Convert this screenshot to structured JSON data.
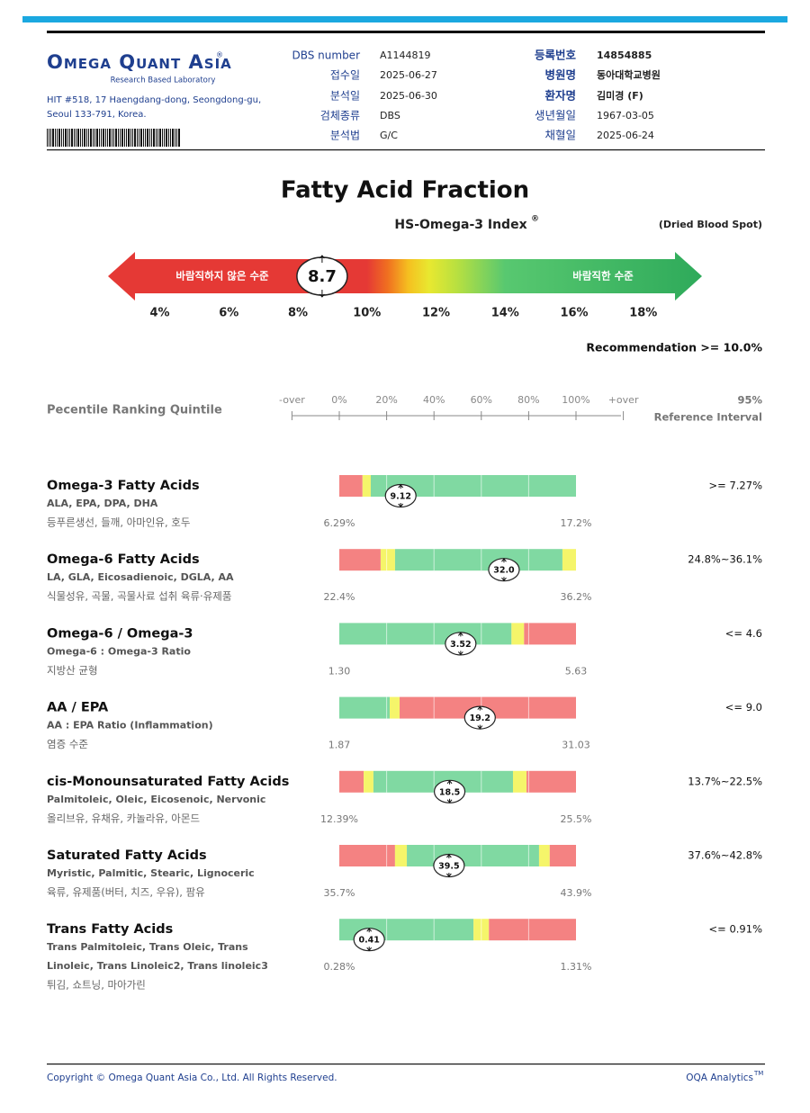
{
  "header": {
    "logo": "Omega Quant Asia",
    "logo_mark": "®",
    "tagline": "Research Based Laboratory",
    "address": [
      "HIT #518, 17 Haengdang-dong, Seongdong-gu,",
      "Seoul 133-791, Korea."
    ],
    "fields_left": [
      {
        "label": "DBS number",
        "value": "A1144819"
      },
      {
        "label": "접수일",
        "value": "2025-06-27"
      },
      {
        "label": "분석일",
        "value": "2025-06-30"
      },
      {
        "label": "검체종류",
        "value": "DBS"
      },
      {
        "label": "분석법",
        "value": "G/C"
      }
    ],
    "fields_right": [
      {
        "label": "등록번호",
        "value": "14854885"
      },
      {
        "label": "병원명",
        "value": "동아대학교병원"
      },
      {
        "label": "환자명",
        "value": "김미경 (F)"
      },
      {
        "label": "생년월일",
        "value": "1967-03-05"
      },
      {
        "label": "채혈일",
        "value": "2025-06-24"
      }
    ]
  },
  "title": "Fatty Acid Fraction",
  "index": {
    "title": "HS-Omega-3 Index",
    "title_mark": "®",
    "sample": "(Dried Blood Spot)",
    "low_label": "바람직하지 않은 수준",
    "high_label": "바람직한 수준",
    "value": 8.7,
    "xlim": [
      2.5,
      19.7
    ],
    "xticks": [
      {
        "value": 4,
        "label": "4%"
      },
      {
        "value": 6,
        "label": "6%"
      },
      {
        "value": 8,
        "label": "8%"
      },
      {
        "value": 10,
        "label": "10%"
      },
      {
        "value": 12,
        "label": "12%"
      },
      {
        "value": 14,
        "label": "14%"
      },
      {
        "value": 16,
        "label": "16%"
      },
      {
        "value": 18,
        "label": "18%"
      }
    ],
    "gradient": [
      {
        "value": 2.5,
        "color": "#e53935"
      },
      {
        "value": 10.0,
        "color": "#e53935"
      },
      {
        "value": 10.6,
        "color": "#f07020"
      },
      {
        "value": 11.2,
        "color": "#f5c020"
      },
      {
        "value": 11.8,
        "color": "#e8e830"
      },
      {
        "value": 12.6,
        "color": "#b8e040"
      },
      {
        "value": 14.0,
        "color": "#58c870"
      },
      {
        "value": 19.7,
        "color": "#2eaa5a"
      }
    ],
    "recommendation": "Recommendation  >= 10.0%"
  },
  "percentile": {
    "title": "Pecentile Ranking Quintile",
    "ticks": [
      {
        "value": -20,
        "label": "-over"
      },
      {
        "value": 0,
        "label": "0%"
      },
      {
        "value": 20,
        "label": "20%"
      },
      {
        "value": 40,
        "label": "40%"
      },
      {
        "value": 60,
        "label": "60%"
      },
      {
        "value": 80,
        "label": "80%"
      },
      {
        "value": 100,
        "label": "100%"
      },
      {
        "value": 120,
        "label": "+over"
      }
    ],
    "ref_title": [
      "95%",
      "Reference Interval"
    ]
  },
  "rows": [
    {
      "name": "Omega-3 Fatty Acids",
      "sub": [
        "ALA, EPA, DPA, DHA"
      ],
      "note": "등푸른생선, 들깨, 아마인유, 호두",
      "min": {
        "value": 6.29,
        "label": "6.29%"
      },
      "max": {
        "value": 17.2,
        "label": "17.2%"
      },
      "value": 9.12,
      "reference": ">= 7.27%",
      "zones": [
        {
          "to": 7.36,
          "color": "#f48282"
        },
        {
          "to": 7.74,
          "color": "#f5f56a"
        },
        {
          "to": 17.2,
          "color": "#80d9a2"
        }
      ]
    },
    {
      "name": "Omega-6 Fatty Acids",
      "sub": [
        "LA, GLA, Eicosadienoic, DGLA, AA"
      ],
      "note": "식물성유, 곡물, 곡물사료 섭취 육류·유제품",
      "min": {
        "value": 22.4,
        "label": "22.4%"
      },
      "max": {
        "value": 36.2,
        "label": "36.2%"
      },
      "value": 32,
      "value_label": "32.0",
      "reference": "24.8%~36.1%",
      "zones": [
        {
          "to": 24.81,
          "color": "#f48282"
        },
        {
          "to": 25.65,
          "color": "#f5f56a"
        },
        {
          "to": 35.41,
          "color": "#80d9a2"
        },
        {
          "to": 36.2,
          "color": "#f5f56a"
        }
      ]
    },
    {
      "name": "Omega-6 / Omega-3",
      "sub": [
        "Omega-6 : Omega-3 Ratio"
      ],
      "note": "지방산 균형",
      "min": {
        "value": 1.3,
        "label": "1.30"
      },
      "max": {
        "value": 5.63,
        "label": "5.63"
      },
      "value": 3.52,
      "reference": "<= 4.6",
      "zones": [
        {
          "to": 4.45,
          "color": "#80d9a2"
        },
        {
          "to": 4.68,
          "color": "#f5f56a"
        },
        {
          "to": 5.63,
          "color": "#f48282"
        }
      ]
    },
    {
      "name": "AA / EPA",
      "sub": [
        "AA : EPA Ratio (Inflammation)"
      ],
      "note": "염증 수준",
      "min": {
        "value": 1.87,
        "label": "1.87"
      },
      "max": {
        "value": 31.03,
        "label": "31.03"
      },
      "value": 19.2,
      "reference": "<= 9.0",
      "zones": [
        {
          "to": 8.08,
          "color": "#80d9a2"
        },
        {
          "to": 9.3,
          "color": "#f5f56a"
        },
        {
          "to": 31.03,
          "color": "#f48282"
        }
      ]
    },
    {
      "name": "cis-Monounsaturated Fatty Acids",
      "sub": [
        "Palmitoleic, Oleic, Eicosenoic, Nervonic"
      ],
      "note": "올리브유, 유채유, 카놀라유, 아몬드",
      "min": {
        "value": 12.39,
        "label": "12.39%"
      },
      "max": {
        "value": 25.5,
        "label": "25.5%"
      },
      "value": 18.5,
      "reference": "13.7%~22.5%",
      "zones": [
        {
          "to": 13.74,
          "color": "#f48282"
        },
        {
          "to": 14.28,
          "color": "#f5f56a"
        },
        {
          "to": 22.01,
          "color": "#80d9a2"
        },
        {
          "to": 22.76,
          "color": "#f5f56a"
        },
        {
          "to": 25.5,
          "color": "#f48282"
        }
      ]
    },
    {
      "name": "Saturated Fatty Acids",
      "sub": [
        "Myristic, Palmitic, Stearic, Lignoceric"
      ],
      "note": "육류, 유제품(버터, 치즈, 우유), 팜유",
      "min": {
        "value": 35.7,
        "label": "35.7%"
      },
      "max": {
        "value": 43.9,
        "label": "43.9%"
      },
      "value": 39.5,
      "reference": "37.6%~42.8%",
      "zones": [
        {
          "to": 37.63,
          "color": "#f48282"
        },
        {
          "to": 38.04,
          "color": "#f5f56a"
        },
        {
          "to": 42.62,
          "color": "#80d9a2"
        },
        {
          "to": 42.99,
          "color": "#f5f56a"
        },
        {
          "to": 43.9,
          "color": "#f48282"
        }
      ]
    },
    {
      "name": "Trans Fatty Acids",
      "sub": [
        "Trans Palmitoleic, Trans Oleic, Trans",
        "Linoleic, Trans Linoleic2, Trans linoleic3"
      ],
      "note": "튀김, 쇼트닝, 마아가린",
      "min": {
        "value": 0.28,
        "label": "0.28%"
      },
      "max": {
        "value": 1.31,
        "label": "1.31%"
      },
      "value": 0.41,
      "reference": "<= 0.91%",
      "zones": [
        {
          "to": 0.864,
          "color": "#80d9a2"
        },
        {
          "to": 0.931,
          "color": "#f5f56a"
        },
        {
          "to": 1.31,
          "color": "#f48282"
        }
      ]
    }
  ],
  "footer": {
    "copyright": "Copyright © Omega Quant Asia Co., Ltd.  All Rights Reserved.",
    "brand": "OQA Analytics",
    "brand_mark": "TM"
  }
}
